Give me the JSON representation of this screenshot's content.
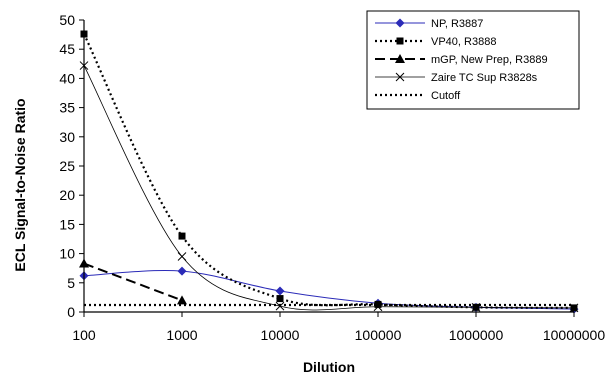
{
  "chart_data": {
    "type": "line",
    "x_scale": "log",
    "y_scale": "linear",
    "xlabel": "Dilution",
    "ylabel": "ECL Signal-to-Noise Ratio",
    "xlim": [
      100,
      10000000
    ],
    "ylim": [
      0,
      50
    ],
    "x_ticks": [
      100,
      1000,
      10000,
      100000,
      1000000,
      10000000
    ],
    "x_tick_labels": [
      "100",
      "1000",
      "10000",
      "100000",
      "1000000",
      "10000000"
    ],
    "y_ticks": [
      0,
      5,
      10,
      15,
      20,
      25,
      30,
      35,
      40,
      45,
      50
    ],
    "y_tick_labels": [
      "0",
      "5",
      "10",
      "15",
      "20",
      "25",
      "30",
      "35",
      "40",
      "45",
      "50"
    ],
    "grid": false,
    "legend_position": "top-right",
    "series": [
      {
        "name": "NP, R3887",
        "color": "#2b2bb8",
        "marker": "diamond",
        "line_style": "solid",
        "x": [
          100,
          1000,
          10000,
          100000,
          1000000,
          10000000
        ],
        "y": [
          6.2,
          7.0,
          3.6,
          1.5,
          0.8,
          0.5
        ]
      },
      {
        "name": "VP40, R3888",
        "color": "#000000",
        "marker": "square",
        "line_style": "dotted",
        "x": [
          100,
          1000,
          10000,
          100000,
          1000000,
          10000000
        ],
        "y": [
          47.6,
          13.0,
          2.3,
          1.3,
          0.8,
          0.7
        ]
      },
      {
        "name": "mGP, New Prep, R3889",
        "color": "#000000",
        "marker": "triangle",
        "line_style": "dashed",
        "x": [
          100,
          1000
        ],
        "y": [
          8.3,
          2.0
        ]
      },
      {
        "name": "Zaire TC Sup R3828s",
        "color": "#000000",
        "marker": "x",
        "line_style": "solid-thin",
        "x": [
          100,
          1000,
          10000,
          100000,
          1000000,
          10000000
        ],
        "y": [
          42.2,
          9.5,
          1.0,
          0.9,
          0.8,
          0.7
        ]
      },
      {
        "name": "Cutoff",
        "color": "#000000",
        "marker": "none",
        "line_style": "dotted",
        "x": [
          100,
          10000000
        ],
        "y": [
          1.2,
          1.2
        ]
      }
    ]
  }
}
